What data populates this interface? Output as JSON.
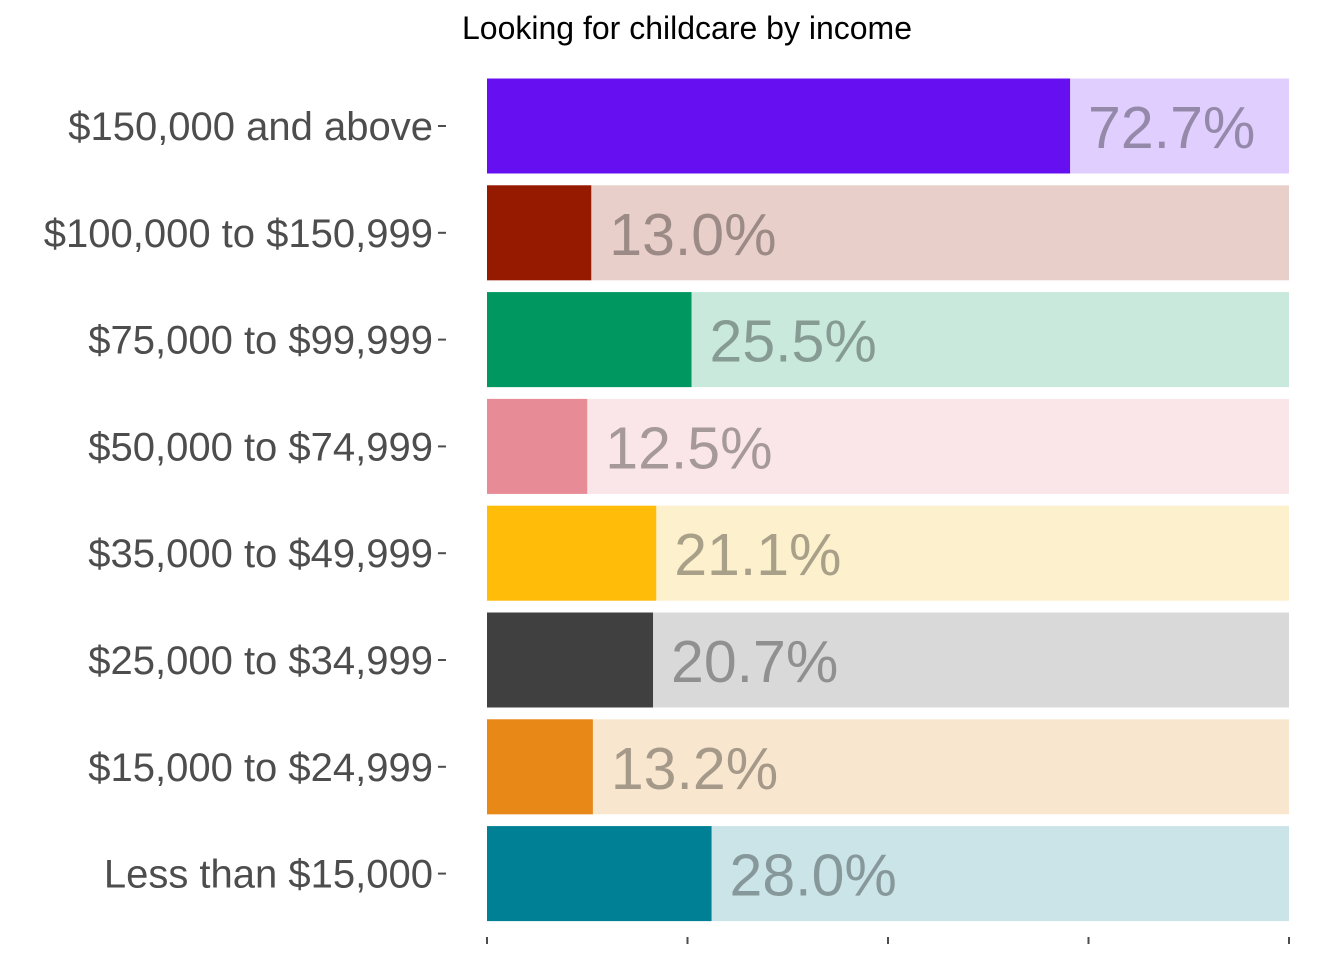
{
  "chart_data": {
    "type": "bar",
    "orientation": "horizontal",
    "title": "Looking for childcare by income",
    "xlabel": "",
    "ylabel": "",
    "xlim": [
      0,
      100
    ],
    "x_ticks": [
      0,
      25,
      50,
      75,
      100
    ],
    "x_tick_labels_shown": false,
    "grid": false,
    "legend": "none",
    "background_bar_value": 100,
    "categories": [
      "$150,000 and above",
      "$100,000 to $150,999",
      "$75,000 to $99,999",
      "$50,000 to $74,999",
      "$35,000 to $49,999",
      "$25,000 to $34,999",
      "$15,000 to $24,999",
      "Less than $15,000"
    ],
    "values": [
      72.7,
      13.0,
      25.5,
      12.5,
      21.1,
      20.7,
      13.2,
      28.0
    ],
    "value_labels": [
      "72.7%",
      "13.0%",
      "25.5%",
      "12.5%",
      "21.1%",
      "20.7%",
      "13.2%",
      "28.0%"
    ],
    "colors": [
      "#6610f2",
      "#961a00",
      "#009760",
      "#e78c97",
      "#ffbd0a",
      "#404040",
      "#e88817",
      "#008095"
    ],
    "background_colors": [
      "#e0ceff",
      "#e9cfca",
      "#c9e9dd",
      "#fae6e8",
      "#fdf0cd",
      "#d9d9d9",
      "#f8e6ce",
      "#cbe4e8"
    ],
    "label_color": "#000000"
  }
}
